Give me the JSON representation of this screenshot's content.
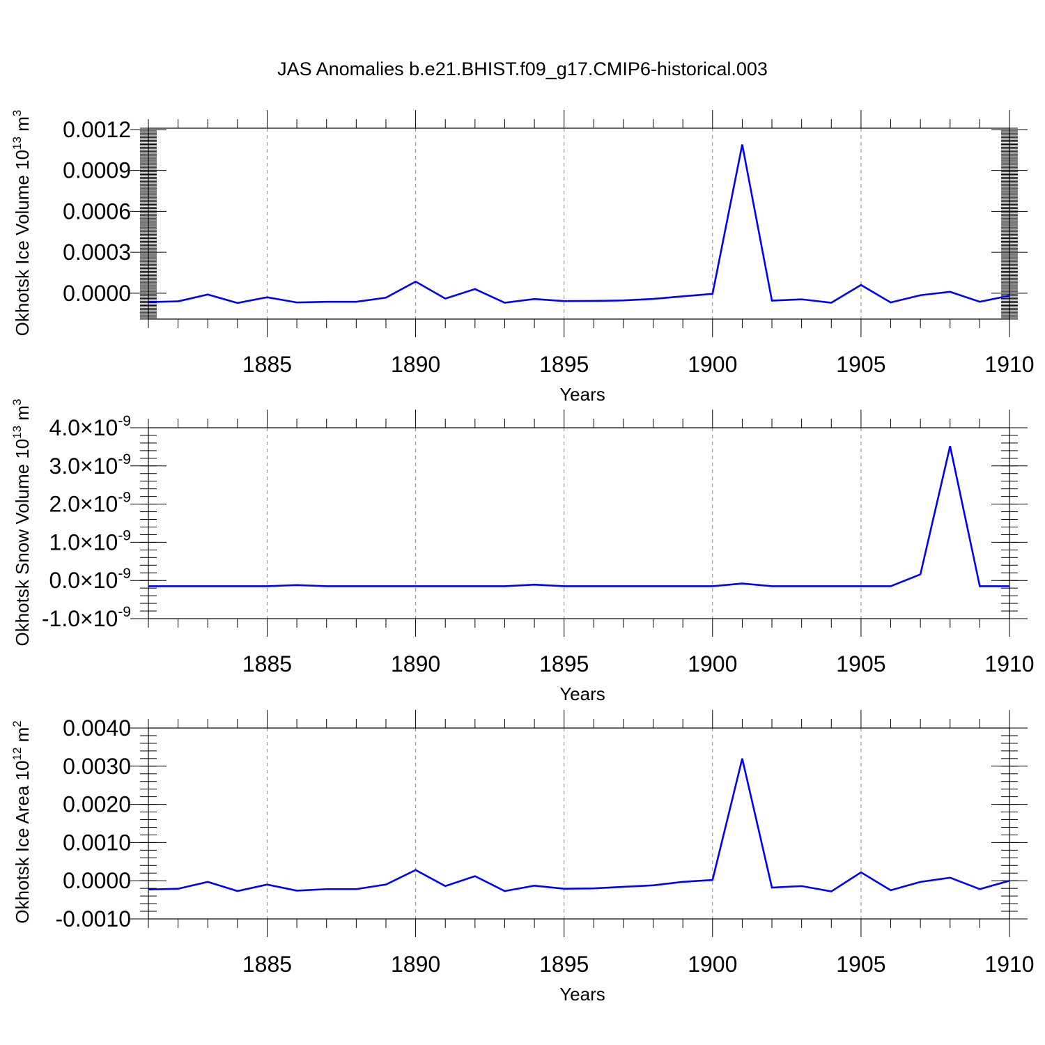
{
  "figure_title": "JAS Anomalies b.e21.BHIST.f09_g17.CMIP6-historical.003",
  "chart_data": [
    {
      "type": "line",
      "ylabel": "Okhotsk Ice Volume 10",
      "ylabel_sup": "13",
      "ylabel_unit": "m",
      "ylabel_unit_sup": "3",
      "xlabel": "Years",
      "xlim": [
        1881,
        1910
      ],
      "ylim": [
        -0.00019,
        0.00121
      ],
      "yticks": [
        0.0,
        0.0003,
        0.0006,
        0.0009,
        0.0012
      ],
      "ytick_labels": [
        "0.0000",
        "0.0003",
        "0.0006",
        "0.0009",
        "0.0012"
      ],
      "xticks": [
        1885,
        1890,
        1895,
        1900,
        1905,
        1910
      ],
      "xtick_labels": [
        "1885",
        "1890",
        "1895",
        "1900",
        "1905",
        "1910"
      ],
      "series": [
        {
          "name": "Okhotsk Ice Volume",
          "color": "#0000ff",
          "x": [
            1881,
            1882,
            1883,
            1884,
            1885,
            1886,
            1887,
            1888,
            1889,
            1890,
            1891,
            1892,
            1893,
            1894,
            1895,
            1896,
            1897,
            1898,
            1899,
            1900,
            1901,
            1902,
            1903,
            1904,
            1905,
            1906,
            1907,
            1908,
            1909,
            1910
          ],
          "y": [
            -6.5e-05,
            -6e-05,
            -1e-05,
            -7.2e-05,
            -3e-05,
            -6.8e-05,
            -6.3e-05,
            -6.3e-05,
            -3.3e-05,
            8.5e-05,
            -4e-05,
            3e-05,
            -7e-05,
            -4.3e-05,
            -5.8e-05,
            -5.7e-05,
            -5.3e-05,
            -4.2e-05,
            -2.3e-05,
            -5e-06,
            0.00109,
            -5.5e-05,
            -4.5e-05,
            -7e-05,
            6e-05,
            -6.8e-05,
            -1.5e-05,
            1e-05,
            -6.3e-05,
            -1.8e-05
          ]
        }
      ]
    },
    {
      "type": "line",
      "ylabel": "Okhotsk Snow Volume 10",
      "ylabel_sup": "13",
      "ylabel_unit": "m",
      "ylabel_unit_sup": "3",
      "xlabel": "Years",
      "xlim": [
        1881,
        1910
      ],
      "ylim": [
        -1e-09,
        4e-09
      ],
      "yticks": [
        -1e-09,
        0.0,
        1e-09,
        2e-09,
        3e-09,
        4e-09
      ],
      "ytick_labels": [
        "-1.0",
        "0.0",
        "1.0",
        "2.0",
        "3.0",
        "4.0"
      ],
      "ytick_multiplier": "×10",
      "ytick_exponent": "-9",
      "xticks": [
        1885,
        1890,
        1895,
        1900,
        1905,
        1910
      ],
      "xtick_labels": [
        "1885",
        "1890",
        "1895",
        "1900",
        "1905",
        "1910"
      ],
      "series": [
        {
          "name": "Okhotsk Snow Volume",
          "color": "#0000ff",
          "x": [
            1881,
            1882,
            1883,
            1884,
            1885,
            1886,
            1887,
            1888,
            1889,
            1890,
            1891,
            1892,
            1893,
            1894,
            1895,
            1896,
            1897,
            1898,
            1899,
            1900,
            1901,
            1902,
            1903,
            1904,
            1905,
            1906,
            1907,
            1908,
            1909,
            1910
          ],
          "y": [
            -1.5e-10,
            -1.5e-10,
            -1.5e-10,
            -1.5e-10,
            -1.5e-10,
            -1.2e-10,
            -1.5e-10,
            -1.5e-10,
            -1.5e-10,
            -1.5e-10,
            -1.5e-10,
            -1.5e-10,
            -1.5e-10,
            -1.1e-10,
            -1.5e-10,
            -1.5e-10,
            -1.5e-10,
            -1.5e-10,
            -1.5e-10,
            -1.5e-10,
            -8e-11,
            -1.5e-10,
            -1.5e-10,
            -1.5e-10,
            -1.5e-10,
            -1.5e-10,
            1.6e-10,
            3.52e-09,
            -1.5e-10,
            -1.5e-10
          ]
        }
      ]
    },
    {
      "type": "line",
      "ylabel": "Okhotsk Ice Area 10",
      "ylabel_sup": "12",
      "ylabel_unit": "m",
      "ylabel_unit_sup": "2",
      "xlabel": "Years",
      "xlim": [
        1881,
        1910
      ],
      "ylim": [
        -0.001,
        0.004
      ],
      "yticks": [
        -0.001,
        0.0,
        0.001,
        0.002,
        0.003,
        0.004
      ],
      "ytick_labels": [
        "-0.0010",
        "0.0000",
        "0.0010",
        "0.0020",
        "0.0030",
        "0.0040"
      ],
      "xticks": [
        1885,
        1890,
        1895,
        1900,
        1905,
        1910
      ],
      "xtick_labels": [
        "1885",
        "1890",
        "1895",
        "1900",
        "1905",
        "1910"
      ],
      "series": [
        {
          "name": "Okhotsk Ice Area",
          "color": "#0000ff",
          "x": [
            1881,
            1882,
            1883,
            1884,
            1885,
            1886,
            1887,
            1888,
            1889,
            1890,
            1891,
            1892,
            1893,
            1894,
            1895,
            1896,
            1897,
            1898,
            1899,
            1900,
            1901,
            1902,
            1903,
            1904,
            1905,
            1906,
            1907,
            1908,
            1909,
            1910
          ],
          "y": [
            -0.00023,
            -0.00021,
            -3e-05,
            -0.00027,
            -0.0001,
            -0.00026,
            -0.00022,
            -0.00022,
            -0.0001,
            0.00028,
            -0.00014,
            0.00012,
            -0.00027,
            -0.00013,
            -0.00021,
            -0.0002,
            -0.00016,
            -0.00012,
            -3e-05,
            2e-05,
            0.0032,
            -0.00018,
            -0.00014,
            -0.00028,
            0.00022,
            -0.00025,
            -3e-05,
            8e-05,
            -0.00022,
            0.0
          ]
        }
      ]
    }
  ]
}
